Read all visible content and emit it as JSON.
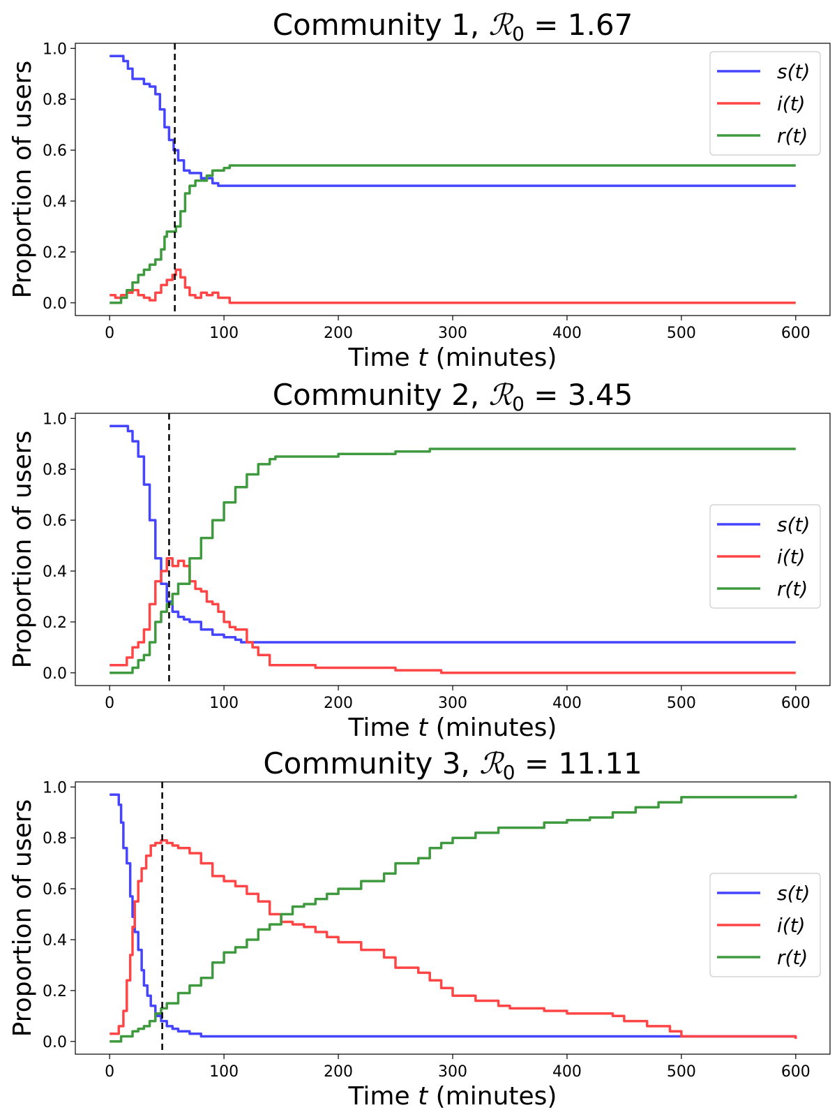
{
  "chart_data": [
    {
      "type": "line",
      "title_prefix": "Community 1, ",
      "title_r": "ℛ",
      "title_sub": "0",
      "title_value": " = 1.67",
      "xlabel_pre": "Time ",
      "xlabel_var": "t",
      "xlabel_post": " (minutes)",
      "ylabel": "Proportion of users",
      "xlim": [
        -30,
        630
      ],
      "ylim": [
        -0.05,
        1.02
      ],
      "xticks": [
        0,
        100,
        200,
        300,
        400,
        500,
        600
      ],
      "xtick_labels": [
        "0",
        "100",
        "200",
        "300",
        "400",
        "500",
        "600"
      ],
      "yticks": [
        0.0,
        0.2,
        0.4,
        0.6,
        0.8,
        1.0
      ],
      "ytick_labels": [
        "0.0",
        "0.2",
        "0.4",
        "0.6",
        "0.8",
        "1.0"
      ],
      "legend_position": "top-right",
      "vline_x": 57,
      "series": [
        {
          "name": "s(t)",
          "color": "#4545ff",
          "x": [
            0,
            8,
            12,
            16,
            20,
            25,
            30,
            35,
            40,
            44,
            48,
            52,
            56,
            60,
            65,
            70,
            80,
            90,
            95,
            100,
            600
          ],
          "y": [
            0.97,
            0.97,
            0.95,
            0.92,
            0.88,
            0.88,
            0.86,
            0.85,
            0.82,
            0.76,
            0.69,
            0.64,
            0.6,
            0.56,
            0.52,
            0.51,
            0.49,
            0.47,
            0.46,
            0.46,
            0.46
          ]
        },
        {
          "name": "i(t)",
          "color": "#ff4545",
          "x": [
            0,
            5,
            10,
            15,
            20,
            25,
            30,
            35,
            40,
            45,
            50,
            55,
            58,
            62,
            66,
            70,
            75,
            80,
            85,
            90,
            95,
            100,
            105,
            600
          ],
          "y": [
            0.03,
            0.02,
            0.03,
            0.04,
            0.05,
            0.03,
            0.02,
            0.01,
            0.04,
            0.07,
            0.09,
            0.11,
            0.13,
            0.1,
            0.06,
            0.03,
            0.02,
            0.04,
            0.03,
            0.04,
            0.02,
            0.02,
            0.0,
            0.0
          ]
        },
        {
          "name": "r(t)",
          "color": "#3f9a3f",
          "x": [
            0,
            10,
            15,
            20,
            25,
            30,
            35,
            40,
            45,
            48,
            50,
            55,
            58,
            62,
            66,
            70,
            75,
            80,
            85,
            90,
            95,
            100,
            105,
            600
          ],
          "y": [
            0.0,
            0.02,
            0.05,
            0.08,
            0.11,
            0.13,
            0.15,
            0.17,
            0.21,
            0.26,
            0.28,
            0.28,
            0.3,
            0.36,
            0.43,
            0.46,
            0.48,
            0.48,
            0.5,
            0.52,
            0.52,
            0.53,
            0.54,
            0.54
          ]
        }
      ]
    },
    {
      "type": "line",
      "title_prefix": "Community 2, ",
      "title_r": "ℛ",
      "title_sub": "0",
      "title_value": " = 3.45",
      "xlabel_pre": "Time ",
      "xlabel_var": "t",
      "xlabel_post": " (minutes)",
      "ylabel": "Proportion of users",
      "xlim": [
        -30,
        630
      ],
      "ylim": [
        -0.05,
        1.02
      ],
      "xticks": [
        0,
        100,
        200,
        300,
        400,
        500,
        600
      ],
      "xtick_labels": [
        "0",
        "100",
        "200",
        "300",
        "400",
        "500",
        "600"
      ],
      "yticks": [
        0.0,
        0.2,
        0.4,
        0.6,
        0.8,
        1.0
      ],
      "ytick_labels": [
        "0.0",
        "0.2",
        "0.4",
        "0.6",
        "0.8",
        "1.0"
      ],
      "legend_position": "center-right",
      "vline_x": 52,
      "series": [
        {
          "name": "s(t)",
          "color": "#4545ff",
          "x": [
            0,
            12,
            16,
            20,
            25,
            30,
            35,
            40,
            45,
            50,
            55,
            60,
            65,
            70,
            80,
            90,
            100,
            110,
            115,
            120,
            600
          ],
          "y": [
            0.97,
            0.97,
            0.95,
            0.91,
            0.85,
            0.74,
            0.6,
            0.45,
            0.35,
            0.28,
            0.24,
            0.22,
            0.21,
            0.2,
            0.17,
            0.15,
            0.14,
            0.13,
            0.12,
            0.12,
            0.12
          ]
        },
        {
          "name": "i(t)",
          "color": "#ff4545",
          "x": [
            0,
            10,
            15,
            20,
            25,
            30,
            35,
            40,
            45,
            50,
            55,
            60,
            65,
            70,
            75,
            80,
            85,
            90,
            95,
            100,
            105,
            110,
            115,
            120,
            125,
            130,
            140,
            150,
            180,
            200,
            250,
            280,
            290,
            600
          ],
          "y": [
            0.03,
            0.03,
            0.06,
            0.1,
            0.12,
            0.17,
            0.27,
            0.36,
            0.4,
            0.45,
            0.42,
            0.44,
            0.42,
            0.36,
            0.33,
            0.32,
            0.28,
            0.27,
            0.24,
            0.2,
            0.18,
            0.17,
            0.17,
            0.12,
            0.1,
            0.07,
            0.03,
            0.03,
            0.02,
            0.02,
            0.01,
            0.01,
            0.0,
            0.0
          ]
        },
        {
          "name": "r(t)",
          "color": "#3f9a3f",
          "x": [
            0,
            15,
            20,
            25,
            30,
            35,
            40,
            45,
            50,
            55,
            60,
            70,
            80,
            90,
            100,
            110,
            120,
            130,
            140,
            145,
            180,
            200,
            250,
            280,
            300,
            600
          ],
          "y": [
            0.0,
            0.0,
            0.02,
            0.05,
            0.07,
            0.12,
            0.2,
            0.24,
            0.27,
            0.31,
            0.35,
            0.45,
            0.53,
            0.6,
            0.67,
            0.73,
            0.78,
            0.82,
            0.84,
            0.85,
            0.85,
            0.86,
            0.87,
            0.88,
            0.88,
            0.88
          ]
        }
      ]
    },
    {
      "type": "line",
      "title_prefix": "Community 3, ",
      "title_r": "ℛ",
      "title_sub": "0",
      "title_value": " = 11.11",
      "xlabel_pre": "Time ",
      "xlabel_var": "t",
      "xlabel_post": " (minutes)",
      "ylabel": "Proportion of users",
      "xlim": [
        -30,
        630
      ],
      "ylim": [
        -0.05,
        1.02
      ],
      "xticks": [
        0,
        100,
        200,
        300,
        400,
        500,
        600
      ],
      "xtick_labels": [
        "0",
        "100",
        "200",
        "300",
        "400",
        "500",
        "600"
      ],
      "yticks": [
        0.0,
        0.2,
        0.4,
        0.6,
        0.8,
        1.0
      ],
      "ytick_labels": [
        "0.0",
        "0.2",
        "0.4",
        "0.6",
        "0.8",
        "1.0"
      ],
      "legend_position": "center-right",
      "vline_x": 46,
      "series": [
        {
          "name": "s(t)",
          "color": "#4545ff",
          "x": [
            0,
            5,
            8,
            10,
            12,
            15,
            18,
            20,
            22,
            25,
            28,
            30,
            33,
            36,
            40,
            45,
            50,
            55,
            60,
            70,
            80,
            600
          ],
          "y": [
            0.97,
            0.97,
            0.93,
            0.86,
            0.76,
            0.7,
            0.57,
            0.49,
            0.43,
            0.36,
            0.28,
            0.22,
            0.18,
            0.14,
            0.1,
            0.08,
            0.06,
            0.05,
            0.04,
            0.03,
            0.02,
            0.02
          ]
        },
        {
          "name": "i(t)",
          "color": "#ff4545",
          "x": [
            0,
            5,
            8,
            12,
            15,
            18,
            20,
            22,
            25,
            28,
            32,
            36,
            40,
            45,
            50,
            55,
            60,
            70,
            80,
            90,
            100,
            110,
            120,
            130,
            140,
            150,
            160,
            170,
            180,
            190,
            200,
            220,
            240,
            250,
            270,
            280,
            290,
            300,
            320,
            340,
            350,
            380,
            400,
            440,
            450,
            470,
            490,
            500,
            550,
            600
          ],
          "y": [
            0.03,
            0.03,
            0.06,
            0.12,
            0.24,
            0.34,
            0.45,
            0.55,
            0.63,
            0.68,
            0.73,
            0.77,
            0.78,
            0.79,
            0.78,
            0.77,
            0.76,
            0.74,
            0.7,
            0.65,
            0.63,
            0.61,
            0.58,
            0.55,
            0.5,
            0.47,
            0.46,
            0.45,
            0.43,
            0.41,
            0.39,
            0.36,
            0.33,
            0.29,
            0.27,
            0.24,
            0.21,
            0.18,
            0.16,
            0.14,
            0.13,
            0.12,
            0.11,
            0.1,
            0.08,
            0.06,
            0.04,
            0.02,
            0.02,
            0.01
          ]
        },
        {
          "name": "r(t)",
          "color": "#3f9a3f",
          "x": [
            0,
            10,
            20,
            25,
            30,
            35,
            40,
            45,
            50,
            60,
            70,
            80,
            90,
            100,
            110,
            120,
            130,
            140,
            150,
            160,
            170,
            180,
            190,
            200,
            220,
            240,
            250,
            270,
            280,
            290,
            300,
            320,
            340,
            350,
            380,
            400,
            420,
            440,
            460,
            480,
            500,
            550,
            600
          ],
          "y": [
            0.0,
            0.02,
            0.04,
            0.05,
            0.06,
            0.08,
            0.11,
            0.13,
            0.15,
            0.19,
            0.22,
            0.25,
            0.31,
            0.35,
            0.37,
            0.4,
            0.44,
            0.46,
            0.5,
            0.53,
            0.54,
            0.56,
            0.58,
            0.6,
            0.63,
            0.66,
            0.7,
            0.72,
            0.76,
            0.78,
            0.8,
            0.82,
            0.84,
            0.84,
            0.86,
            0.87,
            0.88,
            0.9,
            0.92,
            0.94,
            0.96,
            0.96,
            0.97
          ]
        }
      ]
    }
  ]
}
